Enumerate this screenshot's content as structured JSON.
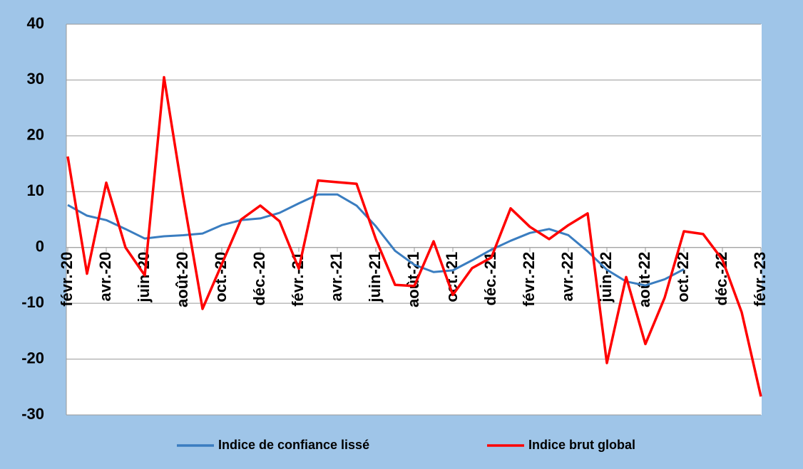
{
  "chart_data": {
    "type": "line",
    "categories": [
      "févr.-20",
      null,
      "avr.-20",
      null,
      "juin-20",
      null,
      "août-20",
      null,
      "oct.-20",
      null,
      "déc.-20",
      null,
      "févr.-21",
      null,
      "avr.-21",
      null,
      "juin-21",
      null,
      "août-21",
      null,
      "oct.-21",
      null,
      "déc.-21",
      null,
      "févr.-22",
      null,
      "avr.-22",
      null,
      "juin-22",
      null,
      "août-22",
      null,
      "oct.-22",
      null,
      "déc.-22",
      null,
      "févr.-23"
    ],
    "series": [
      {
        "name": "Indice de confiance lissé",
        "color": "#3a7dc0",
        "values": [
          7.6,
          5.7,
          4.9,
          3.3,
          1.6,
          2.0,
          2.2,
          2.5,
          4.0,
          4.9,
          5.2,
          6.2,
          7.9,
          9.5,
          9.5,
          7.5,
          3.8,
          -0.6,
          -3.1,
          -4.4,
          -4.1,
          -2.3,
          -0.4,
          1.2,
          2.6,
          3.3,
          2.2,
          -0.7,
          -4.0,
          -6.1,
          -6.8,
          -5.7,
          -3.9,
          null,
          null,
          null,
          null
        ]
      },
      {
        "name": "Indice brut global",
        "color": "#ff0000",
        "values": [
          16.3,
          -4.7,
          11.6,
          0,
          -5,
          30.5,
          9,
          -11,
          -3,
          5,
          7.5,
          4.7,
          -3.8,
          12,
          11.7,
          11.4,
          1.5,
          -6.7,
          -6.9,
          1.1,
          -8.5,
          -3.7,
          -1.8,
          7,
          3.7,
          1.5,
          4,
          6.1,
          -20.7,
          -5.3,
          -17.3,
          -9,
          2.9,
          2.4,
          -2.2,
          -11.6,
          -26.7
        ]
      }
    ],
    "ylim": [
      -30,
      40
    ],
    "yticks": [
      -30,
      -20,
      -10,
      0,
      10,
      20,
      30,
      40
    ],
    "grid": true,
    "legend": "bottom"
  }
}
